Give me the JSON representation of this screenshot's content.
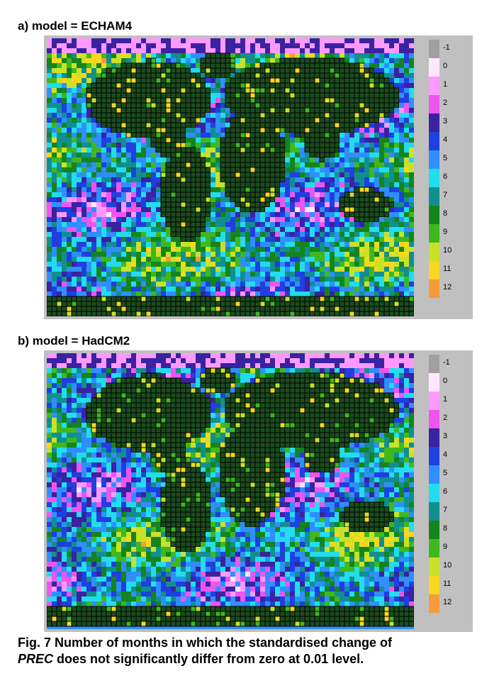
{
  "panels": [
    {
      "title": "a) model = ECHAM4",
      "seed": 7
    },
    {
      "title": "b) model = HadCM2",
      "seed": 23
    }
  ],
  "legend": [
    {
      "label": "-1",
      "color": "#a0a0a0"
    },
    {
      "label": "0",
      "color": "#ffe8ff"
    },
    {
      "label": "1",
      "color": "#ff99ff"
    },
    {
      "label": "2",
      "color": "#ee55ee"
    },
    {
      "label": "3",
      "color": "#3a22a0"
    },
    {
      "label": "4",
      "color": "#1f3fe0"
    },
    {
      "label": "5",
      "color": "#2f8fff"
    },
    {
      "label": "6",
      "color": "#22ddee"
    },
    {
      "label": "7",
      "color": "#118f8f"
    },
    {
      "label": "8",
      "color": "#13851c"
    },
    {
      "label": "9",
      "color": "#3fb81f"
    },
    {
      "label": "10",
      "color": "#c9e228"
    },
    {
      "label": "11",
      "color": "#f7d81e"
    },
    {
      "label": "12",
      "color": "#f79a3a"
    }
  ],
  "caption": {
    "line1": "Fig. 7  Number of months in which the standardised change of",
    "italic": "PREC",
    "line2": " does not significantly differ from zero at 0.01 level."
  }
}
